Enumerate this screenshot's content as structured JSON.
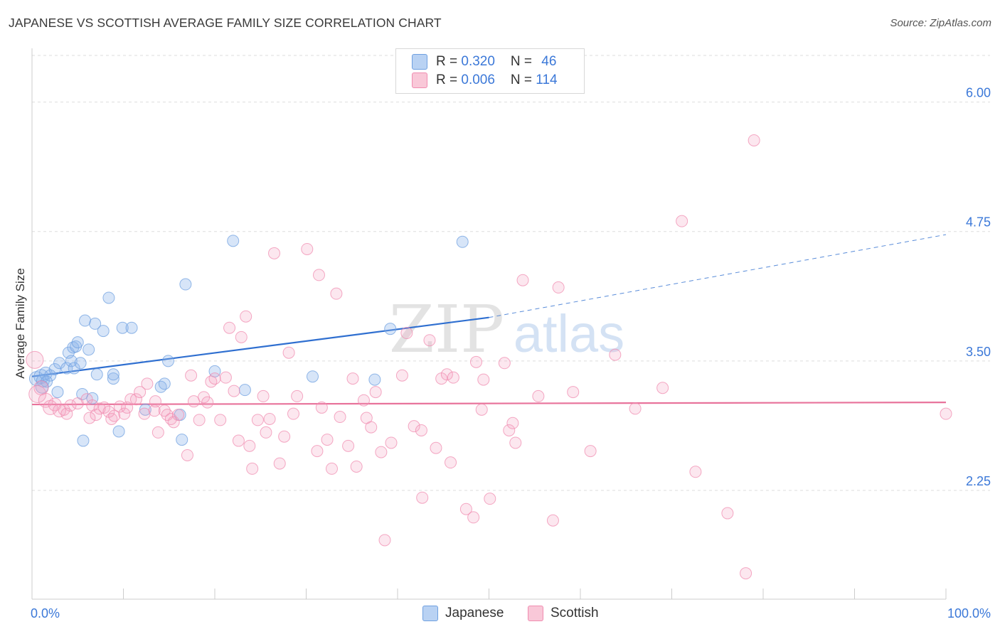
{
  "title": "JAPANESE VS SCOTTISH AVERAGE FAMILY SIZE CORRELATION CHART",
  "source": "Source: ZipAtlas.com",
  "watermark": {
    "zip": "ZIP",
    "atlas": "atlas"
  },
  "legend": {
    "rows": [
      {
        "r_label": "R = ",
        "r_value": "0.320",
        "n_label": "N = ",
        "n_value": "46",
        "color": "#6fa0e0"
      },
      {
        "r_label": "R = ",
        "r_value": "0.006",
        "n_label": "N = ",
        "n_value": "114",
        "color": "#f08cb0"
      }
    ]
  },
  "bottom_legend": [
    {
      "label": "Japanese",
      "color": "#6fa0e0"
    },
    {
      "label": "Scottish",
      "color": "#f08cb0"
    }
  ],
  "chart_data": {
    "type": "scatter",
    "title": "JAPANESE VS SCOTTISH AVERAGE FAMILY SIZE CORRELATION CHART",
    "xlabel": "",
    "ylabel": "Average Family Size",
    "xlim": [
      0,
      100
    ],
    "ylim": [
      1.2,
      6.45
    ],
    "x_tick_labels": {
      "min": "0.0%",
      "max": "100.0%"
    },
    "y_ticks": [
      {
        "value": 2.25,
        "label": "2.25"
      },
      {
        "value": 3.5,
        "label": "3.50"
      },
      {
        "value": 4.75,
        "label": "4.75"
      },
      {
        "value": 6.0,
        "label": "6.00"
      }
    ],
    "grid": true,
    "series": [
      {
        "name": "Japanese",
        "color": "#6fa0e0",
        "fill": "rgba(140,180,235,0.35)",
        "trend": {
          "x0": 0,
          "y0": 3.35,
          "x1": 50,
          "y1": 3.92,
          "extend_to": 100,
          "extend_y": 4.72
        },
        "points": [
          [
            0.5,
            3.33,
            10
          ],
          [
            1.0,
            3.35,
            10
          ],
          [
            1.2,
            3.31,
            9
          ],
          [
            1.5,
            3.38,
            9
          ],
          [
            2.0,
            3.36,
            8
          ],
          [
            1.6,
            3.3,
            8
          ],
          [
            2.5,
            3.42,
            8
          ],
          [
            2.8,
            3.2,
            8
          ],
          [
            3.0,
            3.48,
            8
          ],
          [
            3.8,
            3.43,
            8
          ],
          [
            4.0,
            3.58,
            8
          ],
          [
            4.3,
            3.5,
            8
          ],
          [
            4.5,
            3.63,
            8
          ],
          [
            4.6,
            3.43,
            8
          ],
          [
            4.8,
            3.64,
            8
          ],
          [
            5.0,
            3.68,
            8
          ],
          [
            5.3,
            3.48,
            8
          ],
          [
            5.5,
            3.18,
            8
          ],
          [
            5.6,
            2.73,
            8
          ],
          [
            5.8,
            3.89,
            8
          ],
          [
            6.2,
            3.61,
            8
          ],
          [
            6.6,
            3.14,
            8
          ],
          [
            6.9,
            3.86,
            8
          ],
          [
            7.1,
            3.37,
            8
          ],
          [
            7.8,
            3.79,
            8
          ],
          [
            8.4,
            4.11,
            8
          ],
          [
            8.9,
            3.33,
            8
          ],
          [
            8.9,
            3.37,
            8
          ],
          [
            9.5,
            2.82,
            8
          ],
          [
            9.9,
            3.82,
            8
          ],
          [
            10.9,
            3.82,
            8
          ],
          [
            12.4,
            3.03,
            8
          ],
          [
            14.1,
            3.25,
            8
          ],
          [
            14.5,
            3.28,
            8
          ],
          [
            14.9,
            3.5,
            8
          ],
          [
            16.2,
            2.98,
            8
          ],
          [
            16.4,
            2.74,
            8
          ],
          [
            16.8,
            4.24,
            8
          ],
          [
            20.0,
            3.4,
            8
          ],
          [
            22.0,
            4.66,
            8
          ],
          [
            23.3,
            3.22,
            8
          ],
          [
            30.7,
            3.35,
            8
          ],
          [
            37.5,
            3.32,
            8
          ],
          [
            39.2,
            3.81,
            8
          ],
          [
            47.1,
            4.65,
            8
          ],
          [
            1.1,
            3.25,
            9
          ]
        ]
      },
      {
        "name": "Scottish",
        "color": "#f08cb0",
        "fill": "rgba(245,160,190,0.25)",
        "trend": {
          "x0": 0,
          "y0": 3.08,
          "x1": 100,
          "y1": 3.1
        },
        "points": [
          [
            0.3,
            3.51,
            12
          ],
          [
            0.6,
            3.18,
            12
          ],
          [
            1.0,
            3.24,
            10
          ],
          [
            1.5,
            3.12,
            10
          ],
          [
            2.0,
            3.05,
            10
          ],
          [
            2.5,
            3.08,
            9
          ],
          [
            3.0,
            3.02,
            9
          ],
          [
            3.5,
            3.03,
            8
          ],
          [
            3.8,
            2.99,
            8
          ],
          [
            4.2,
            3.07,
            8
          ],
          [
            5.0,
            3.09,
            8
          ],
          [
            6.0,
            3.13,
            8
          ],
          [
            6.3,
            2.95,
            8
          ],
          [
            6.6,
            3.07,
            8
          ],
          [
            7.0,
            2.98,
            8
          ],
          [
            7.4,
            3.04,
            8
          ],
          [
            7.9,
            3.05,
            8
          ],
          [
            8.4,
            3.01,
            8
          ],
          [
            8.7,
            2.94,
            8
          ],
          [
            9.0,
            2.97,
            8
          ],
          [
            9.6,
            3.06,
            8
          ],
          [
            10.1,
            2.99,
            8
          ],
          [
            10.4,
            3.05,
            8
          ],
          [
            10.8,
            3.13,
            8
          ],
          [
            11.4,
            3.13,
            8
          ],
          [
            11.8,
            3.2,
            8
          ],
          [
            12.3,
            2.99,
            8
          ],
          [
            12.6,
            3.28,
            8
          ],
          [
            13.4,
            3.02,
            8
          ],
          [
            13.5,
            3.11,
            8
          ],
          [
            13.8,
            2.81,
            8
          ],
          [
            14.5,
            3.02,
            8
          ],
          [
            14.8,
            2.98,
            8
          ],
          [
            15.2,
            2.94,
            8
          ],
          [
            15.5,
            2.91,
            8
          ],
          [
            16.0,
            2.98,
            8
          ],
          [
            17.0,
            2.59,
            8
          ],
          [
            17.4,
            3.36,
            8
          ],
          [
            17.7,
            3.11,
            8
          ],
          [
            18.3,
            2.93,
            8
          ],
          [
            18.8,
            3.15,
            8
          ],
          [
            19.2,
            3.1,
            8
          ],
          [
            19.6,
            3.3,
            8
          ],
          [
            20.0,
            3.33,
            8
          ],
          [
            20.6,
            2.93,
            8
          ],
          [
            21.2,
            3.34,
            8
          ],
          [
            21.6,
            3.82,
            8
          ],
          [
            22.1,
            3.21,
            8
          ],
          [
            22.6,
            2.73,
            8
          ],
          [
            22.9,
            3.73,
            8
          ],
          [
            23.4,
            3.93,
            8
          ],
          [
            23.8,
            2.68,
            8
          ],
          [
            24.1,
            2.46,
            8
          ],
          [
            24.7,
            2.93,
            8
          ],
          [
            25.3,
            3.16,
            8
          ],
          [
            25.6,
            2.81,
            8
          ],
          [
            26.0,
            2.94,
            8
          ],
          [
            26.5,
            4.54,
            8
          ],
          [
            27.1,
            2.51,
            8
          ],
          [
            27.6,
            2.77,
            8
          ],
          [
            28.1,
            3.58,
            8
          ],
          [
            28.6,
            2.99,
            8
          ],
          [
            29.0,
            3.16,
            8
          ],
          [
            30.1,
            4.58,
            8
          ],
          [
            31.2,
            2.63,
            8
          ],
          [
            31.4,
            4.33,
            8
          ],
          [
            31.7,
            3.05,
            8
          ],
          [
            32.3,
            2.74,
            8
          ],
          [
            32.8,
            2.46,
            8
          ],
          [
            33.3,
            4.15,
            8
          ],
          [
            33.7,
            2.96,
            8
          ],
          [
            34.6,
            2.68,
            8
          ],
          [
            35.1,
            3.33,
            8
          ],
          [
            35.5,
            2.48,
            8
          ],
          [
            36.3,
            3.12,
            8
          ],
          [
            36.6,
            2.95,
            8
          ],
          [
            37.1,
            2.86,
            8
          ],
          [
            37.6,
            3.2,
            8
          ],
          [
            38.2,
            2.62,
            8
          ],
          [
            38.6,
            1.77,
            8
          ],
          [
            39.3,
            2.71,
            8
          ],
          [
            40.5,
            3.36,
            8
          ],
          [
            41.0,
            3.77,
            8
          ],
          [
            41.8,
            2.87,
            8
          ],
          [
            42.6,
            2.83,
            8
          ],
          [
            42.7,
            2.18,
            8
          ],
          [
            43.5,
            3.7,
            8
          ],
          [
            44.2,
            2.66,
            8
          ],
          [
            44.8,
            3.33,
            8
          ],
          [
            45.4,
            3.37,
            8
          ],
          [
            45.8,
            2.52,
            8
          ],
          [
            46.1,
            3.34,
            8
          ],
          [
            47.5,
            2.07,
            8
          ],
          [
            48.3,
            1.99,
            8
          ],
          [
            48.6,
            3.49,
            8
          ],
          [
            49.2,
            3.03,
            8
          ],
          [
            49.4,
            3.32,
            8
          ],
          [
            50.1,
            2.17,
            8
          ],
          [
            51.7,
            3.48,
            8
          ],
          [
            52.2,
            2.83,
            8
          ],
          [
            52.6,
            2.9,
            8
          ],
          [
            52.9,
            2.71,
            8
          ],
          [
            53.7,
            4.28,
            8
          ],
          [
            55.4,
            3.16,
            8
          ],
          [
            57.0,
            1.96,
            8
          ],
          [
            57.6,
            4.21,
            8
          ],
          [
            59.2,
            3.2,
            8
          ],
          [
            61.1,
            2.63,
            8
          ],
          [
            63.8,
            3.56,
            8
          ],
          [
            66.0,
            3.04,
            8
          ],
          [
            69.0,
            3.24,
            8
          ],
          [
            71.1,
            4.85,
            8
          ],
          [
            72.6,
            2.43,
            8
          ],
          [
            76.1,
            2.03,
            8
          ],
          [
            78.1,
            1.45,
            8
          ],
          [
            79.0,
            5.63,
            8
          ],
          [
            100.0,
            2.99,
            8
          ]
        ]
      }
    ]
  }
}
